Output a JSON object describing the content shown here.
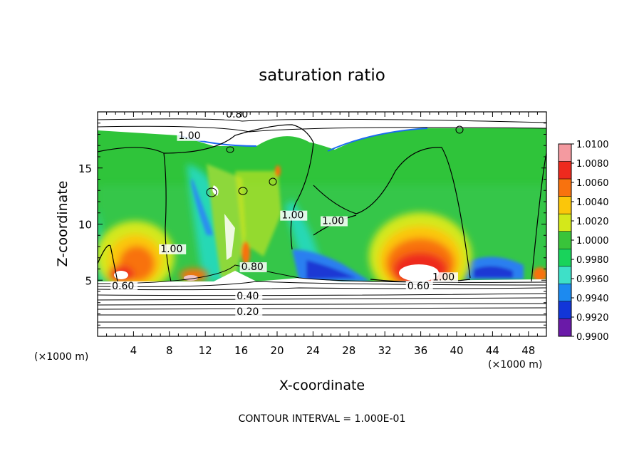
{
  "chart_data": {
    "type": "heatmap",
    "title": "saturation ratio",
    "xlabel": "X-coordinate",
    "ylabel": "Z-coordinate",
    "x_unit": "(×1000 m)",
    "footer": "CONTOUR INTERVAL = 1.000E-01",
    "xlim": [
      0,
      50
    ],
    "ylim": [
      0,
      20
    ],
    "x_ticks": [
      4,
      8,
      12,
      16,
      20,
      24,
      28,
      32,
      36,
      40,
      44,
      48
    ],
    "y_ticks": [
      5,
      10,
      15
    ],
    "colorbar": {
      "labels": [
        "1.0100",
        "1.0080",
        "1.0060",
        "1.0040",
        "1.0020",
        "1.0000",
        "0.9980",
        "0.9960",
        "0.9940",
        "0.9920",
        "0.9900"
      ],
      "colors": [
        "#f49aa0",
        "#ee2a1e",
        "#f8720e",
        "#fbc60a",
        "#d4e81a",
        "#39c43a",
        "#19d35b",
        "#3ee0c8",
        "#1c8af0",
        "#1236d8",
        "#6a1aa8"
      ]
    },
    "contour_labels": [
      {
        "text": "0.80",
        "x": 14.3,
        "y": 19.5
      },
      {
        "text": "1.00",
        "x": 9.0,
        "y": 17.6
      },
      {
        "text": "1.00",
        "x": 20.5,
        "y": 10.5
      },
      {
        "text": "1.00",
        "x": 25.0,
        "y": 10.0
      },
      {
        "text": "1.00",
        "x": 7.0,
        "y": 7.5
      },
      {
        "text": "0.80",
        "x": 16.0,
        "y": 5.9
      },
      {
        "text": "1.00",
        "x": 37.3,
        "y": 5.0
      },
      {
        "text": "0.60",
        "x": 1.6,
        "y": 4.2
      },
      {
        "text": "0.60",
        "x": 34.5,
        "y": 4.2
      },
      {
        "text": "0.40",
        "x": 15.5,
        "y": 3.3
      },
      {
        "text": "0.20",
        "x": 15.5,
        "y": 1.9
      }
    ]
  }
}
